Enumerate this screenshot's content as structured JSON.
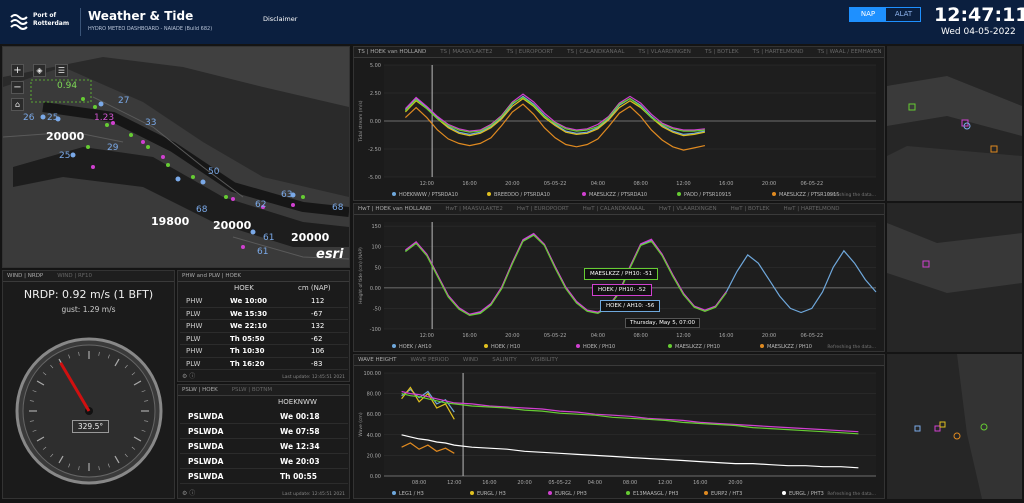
{
  "header": {
    "logo_line1": "Port of",
    "logo_line2": "Rotterdam",
    "title": "Weather & Tide",
    "subtitle": "HYDRO METEO DASHBOARD - NAIADE (Build 682)",
    "disclaimer": "Disclaimer",
    "toggle_nap": "NAP",
    "toggle_alat": "ALAT",
    "clock": "12:47:11",
    "date": "Wed 04-05-2022"
  },
  "map": {
    "labels": [
      {
        "text": "0.94",
        "c": "#7ed957"
      },
      {
        "text": "27",
        "c": "#7aa9e8"
      },
      {
        "text": "26",
        "c": "#7aa9e8"
      },
      {
        "text": "25",
        "c": "#7aa9e8"
      },
      {
        "text": "1.23",
        "c": "#d255d2"
      },
      {
        "text": "33",
        "c": "#7aa9e8"
      },
      {
        "text": "20000",
        "c": "#ffffff"
      },
      {
        "text": "29",
        "c": "#7aa9e8"
      },
      {
        "text": "25",
        "c": "#7aa9e8"
      },
      {
        "text": "50",
        "c": "#7aa9e8"
      },
      {
        "text": "68",
        "c": "#7aa9e8"
      },
      {
        "text": "19800",
        "c": "#ffffff"
      },
      {
        "text": "20000",
        "c": "#ffffff"
      },
      {
        "text": "62",
        "c": "#7aa9e8"
      },
      {
        "text": "63",
        "c": "#7aa9e8"
      },
      {
        "text": "20000",
        "c": "#ffffff"
      },
      {
        "text": "61",
        "c": "#7aa9e8"
      },
      {
        "text": "68",
        "c": "#7aa9e8"
      },
      {
        "text": "61",
        "c": "#7aa9e8"
      }
    ],
    "esri": "esri"
  },
  "wind": {
    "tab_active": "WIND | NRDP",
    "tab_other": "WIND | RF10",
    "reading": "NRDP: 0.92 m/s (1 BFT)",
    "gust": "gust: 1.29 m/s",
    "direction": "329.5°",
    "direction_deg": 329.5
  },
  "hwlw": {
    "title": "PHW and PLW | HOEK",
    "col1": "HOEK",
    "col2": "cm (NAP)",
    "rows": [
      {
        "type": "PHW",
        "time": "We 10:00",
        "value": "112"
      },
      {
        "type": "PLW",
        "time": "We 15:30",
        "value": "-67"
      },
      {
        "type": "PHW",
        "time": "We 22:10",
        "value": "132"
      },
      {
        "type": "PLW",
        "time": "Th 05:50",
        "value": "-62"
      },
      {
        "type": "PHW",
        "time": "Th 10:30",
        "value": "106"
      },
      {
        "type": "PLW",
        "time": "Th 16:20",
        "value": "-83"
      }
    ],
    "footer": "Last update: 12:45:51 2021"
  },
  "pslw": {
    "title_active": "PSLW | HOEK",
    "title_other": "PSLW | BOTNM",
    "col1": "HOEKNWW",
    "rows": [
      {
        "type": "PSLWDA",
        "time": "We 00:18"
      },
      {
        "type": "PSLWDA",
        "time": "We 07:58"
      },
      {
        "type": "PSLWDA",
        "time": "We 12:34"
      },
      {
        "type": "PSLWDA",
        "time": "We 20:03"
      },
      {
        "type": "PSLWDA",
        "time": "Th 00:55"
      }
    ],
    "footer": "Last update: 12:45:51 2021"
  },
  "ts_panel": {
    "tabs": [
      "TS | HOEK van HOLLAND",
      "TS | MAASVLAKTE2",
      "TS | EUROPOORT",
      "TS | CALANDKANAAL",
      "TS | VLAARDINGEN",
      "TS | BOTLEK",
      "TS | HARTELMOND",
      "TS | WAAL / EEMHAVEN"
    ],
    "ylabel": "Tidal stream (m/s)",
    "yticks": [
      "5.00",
      "2.50",
      "0.00",
      "-2.50",
      "-5.00"
    ],
    "xticks": [
      "12:00",
      "16:00",
      "20:00",
      "05-05-22",
      "04:00",
      "08:00",
      "12:00",
      "16:00",
      "20:00",
      "06-05-22"
    ],
    "legend": [
      {
        "name": "HOEKNWW / PTSRDA10",
        "color": "#6fa8dc"
      },
      {
        "name": "BREEDDO / PTSRDA10",
        "color": "#e0c020"
      },
      {
        "name": "MAESLKZZ / PTSRDA10",
        "color": "#d040d0"
      },
      {
        "name": "PADD / PTSR10915",
        "color": "#66cc33"
      },
      {
        "name": "MAESLKZZ / PTSR10915",
        "color": "#e08a20"
      }
    ],
    "refresh": "Refreshing the data..."
  },
  "hwt_panel": {
    "tabs": [
      "HwT | HOEK van HOLLAND",
      "HwT | MAASVLAKTE2",
      "HwT | EUROPOORT",
      "HwT | CALANDKANAAL",
      "HwT | VLAARDINGEN",
      "HwT | BOTLEK",
      "HwT | HARTELMOND"
    ],
    "ylabel": "Height of tide (cm) (NAP)",
    "yticks": [
      "150",
      "100",
      "50",
      "0.00",
      "-50",
      "-100"
    ],
    "xticks": [
      "12:00",
      "16:00",
      "20:00",
      "05-05-22",
      "04:00",
      "08:00",
      "12:00",
      "16:00",
      "20:00",
      "06-05-22"
    ],
    "tooltip": [
      {
        "text": "MAESLKZZ / PH10: -51",
        "color": "#66cc33"
      },
      {
        "text": "HOEK / PH10: -52",
        "color": "#d040d0"
      },
      {
        "text": "HOEK / AH10: -56",
        "color": "#6fa8dc"
      }
    ],
    "tooltip_date": "Thursday, May 5, 07:00",
    "legend": [
      {
        "name": "HOEK / AH10",
        "color": "#6fa8dc"
      },
      {
        "name": "HOEK / H10",
        "color": "#e0c020"
      },
      {
        "name": "HOEK / PH10",
        "color": "#d040d0"
      },
      {
        "name": "MAESLKZZ / PH10",
        "color": "#66cc33"
      },
      {
        "name": "MAESLKZZ / PH10",
        "color": "#e08a20"
      }
    ],
    "refresh": "Refreshing the data..."
  },
  "wave_panel": {
    "tabs": [
      "WAVE HEIGHT",
      "WAVE PERIOD",
      "WIND",
      "SALINITY",
      "VISIBILITY"
    ],
    "ylabel": "Wave (cm)",
    "yticks": [
      "100.00",
      "80.00",
      "60.00",
      "40.00",
      "20.00",
      "0.00"
    ],
    "xticks": [
      "08:00",
      "12:00",
      "16:00",
      "20:00",
      "05-05-22",
      "04:00",
      "08:00",
      "12:00",
      "16:00",
      "20:00"
    ],
    "legend": [
      {
        "name": "LEG1 / H3",
        "color": "#6fa8dc"
      },
      {
        "name": "EURGL / H3",
        "color": "#e0c020"
      },
      {
        "name": "EURGL / PH3",
        "color": "#d040d0"
      },
      {
        "name": "E13MAASGL / PH3",
        "color": "#66cc33"
      },
      {
        "name": "EURP2 / HT3",
        "color": "#e08a20"
      },
      {
        "name": "EURGL / PHT3",
        "color": "#ffffff"
      }
    ],
    "refresh": "Refreshing the data..."
  },
  "chart_data": [
    {
      "type": "line",
      "title": "TS | HOEK van HOLLAND",
      "ylabel": "Tidal stream (m/s)",
      "ylim": [
        -5,
        5
      ],
      "x_hours": [
        -2,
        -1,
        0,
        1,
        2,
        3,
        4,
        5,
        6,
        7,
        8,
        9,
        10,
        11,
        12,
        13,
        14,
        15,
        16,
        17,
        18,
        19,
        20,
        21,
        22,
        23,
        24,
        25,
        26,
        27,
        28,
        29,
        30
      ],
      "series": [
        {
          "name": "HOEKNWW / PTSRDA10",
          "values": [
            1.0,
            2.0,
            1.2,
            0.3,
            -0.5,
            -1.0,
            -1.2,
            -1.0,
            -0.5,
            0.3,
            1.5,
            2.2,
            1.5,
            0.5,
            -0.3,
            -0.9,
            -1.1,
            -1.0,
            -0.6,
            0.2,
            1.4,
            2.0,
            1.4,
            0.4,
            -0.4,
            -0.9,
            -1.2,
            -1.1,
            -0.9
          ]
        },
        {
          "name": "BREEDDO / PTSRDA10",
          "values": [
            0.8,
            1.8,
            1.1,
            0.2,
            -0.6,
            -1.1,
            -1.3,
            -1.1,
            -0.6,
            0.2,
            1.3,
            2.0,
            1.3,
            0.3,
            -0.4,
            -1.0,
            -1.2,
            -1.1,
            -0.7,
            0.1,
            1.2,
            1.8,
            1.2,
            0.3,
            -0.5,
            -1.0,
            -1.3,
            -1.2,
            -1.0
          ]
        },
        {
          "name": "MAESLKZZ / PTSRDA10",
          "values": [
            1.1,
            2.1,
            1.3,
            0.4,
            -0.3,
            -0.7,
            -0.9,
            -0.8,
            -0.3,
            0.5,
            1.7,
            2.4,
            1.7,
            0.7,
            -0.1,
            -0.6,
            -0.8,
            -0.7,
            -0.3,
            0.4,
            1.6,
            2.2,
            1.6,
            0.6,
            -0.2,
            -0.6,
            -0.8,
            -0.8,
            -0.7
          ]
        },
        {
          "name": "PADD / PTSR10915",
          "values": [
            0.9,
            1.9,
            1.1,
            0.2,
            -0.4,
            -0.8,
            -1.0,
            -0.9,
            -0.4,
            0.4,
            1.6,
            2.1,
            1.4,
            0.4,
            -0.2,
            -0.7,
            -0.9,
            -0.8,
            -0.5,
            0.3,
            1.5,
            2.0,
            1.3,
            0.3,
            -0.3,
            -0.7,
            -0.9,
            -0.9,
            -0.8
          ]
        },
        {
          "name": "MAESLKZZ / PTSR10915",
          "values": [
            0.3,
            1.2,
            0.3,
            -0.8,
            -1.6,
            -2.0,
            -2.2,
            -2.0,
            -1.5,
            -0.4,
            0.8,
            1.5,
            0.6,
            -0.6,
            -1.5,
            -2.1,
            -2.3,
            -2.1,
            -1.6,
            -0.5,
            0.7,
            1.3,
            0.4,
            -0.8,
            -1.7,
            -2.3,
            -2.6,
            -2.4,
            -2.2
          ]
        }
      ]
    },
    {
      "type": "line",
      "title": "HwT | HOEK van HOLLAND",
      "ylabel": "Height of tide (cm) (NAP)",
      "ylim": [
        -100,
        160
      ],
      "x_hours": [
        -2,
        -1,
        0,
        1,
        2,
        3,
        4,
        5,
        6,
        7,
        8,
        9,
        10,
        11,
        12,
        13,
        14,
        15,
        16,
        17,
        18,
        19,
        20,
        21,
        22,
        23,
        24,
        25,
        26,
        27,
        28,
        29,
        30,
        31,
        32,
        33,
        34,
        35,
        36,
        37,
        38,
        39,
        40,
        41,
        42
      ],
      "series": [
        {
          "name": "HOEK / AH10",
          "values": [
            90,
            110,
            80,
            30,
            -20,
            -50,
            -65,
            -60,
            -40,
            0,
            60,
            115,
            130,
            105,
            50,
            0,
            -35,
            -55,
            -60,
            -45,
            -10,
            50,
            105,
            115,
            80,
            30,
            -15,
            -45,
            -55,
            -45,
            -10,
            40,
            80,
            60,
            20,
            -20,
            -50,
            -60,
            -50,
            -10,
            50,
            90,
            60,
            20,
            -10
          ]
        },
        {
          "name": "HOEK / PH10",
          "values": [
            92,
            112,
            82,
            32,
            -18,
            -48,
            -64,
            -58,
            -38,
            2,
            62,
            117,
            132,
            106,
            52,
            2,
            -33,
            -54,
            -59,
            -44,
            -9,
            52,
            107,
            118,
            82,
            32,
            -13,
            -44,
            -54,
            -44,
            -9
          ]
        },
        {
          "name": "MAESLKZZ / PH10",
          "values": [
            88,
            108,
            78,
            28,
            -22,
            -52,
            -67,
            -62,
            -42,
            -2,
            58,
            113,
            128,
            103,
            48,
            -2,
            -37,
            -57,
            -62,
            -47,
            -12,
            48,
            103,
            113,
            78,
            28,
            -17,
            -47,
            -57,
            -47,
            -12
          ]
        }
      ]
    },
    {
      "type": "line",
      "title": "WAVE HEIGHT",
      "ylabel": "Wave (cm)",
      "ylim": [
        0,
        100
      ],
      "x_hours": [
        -6,
        -5,
        -4,
        -3,
        -2,
        -1,
        0,
        2,
        4,
        6,
        8,
        10,
        12,
        14,
        16,
        18,
        20,
        22,
        24,
        26,
        28,
        30,
        32,
        34,
        36,
        38,
        40,
        42,
        44,
        46
      ],
      "series": [
        {
          "name": "LEG1 / H3",
          "values": [
            78,
            84,
            76,
            82,
            70,
            74,
            62
          ]
        },
        {
          "name": "EURGL / H3",
          "values": [
            75,
            86,
            72,
            80,
            66,
            70,
            55
          ]
        },
        {
          "name": "EURGL / PH3",
          "values": [
            82,
            80,
            79,
            77,
            75,
            73,
            71,
            70,
            68,
            67,
            66,
            65,
            63,
            62,
            60,
            59,
            58,
            56,
            55,
            54,
            52,
            51,
            50,
            49,
            48,
            47,
            46,
            45,
            44,
            43
          ]
        },
        {
          "name": "E13MAASGL / PH3",
          "values": [
            80,
            78,
            77,
            75,
            73,
            71,
            70,
            68,
            67,
            66,
            64,
            63,
            61,
            60,
            59,
            57,
            56,
            55,
            54,
            52,
            51,
            50,
            49,
            47,
            46,
            45,
            44,
            43,
            42,
            41
          ]
        },
        {
          "name": "EURP2 / HT3",
          "values": [
            28,
            32,
            26,
            30,
            24,
            27,
            22
          ]
        },
        {
          "name": "EURGL / PHT3",
          "values": [
            40,
            38,
            36,
            35,
            33,
            32,
            30,
            28,
            27,
            26,
            24,
            23,
            22,
            21,
            20,
            19,
            18,
            17,
            16,
            15,
            14,
            13,
            12,
            12,
            11,
            10,
            10,
            9,
            9,
            8
          ]
        }
      ]
    }
  ]
}
